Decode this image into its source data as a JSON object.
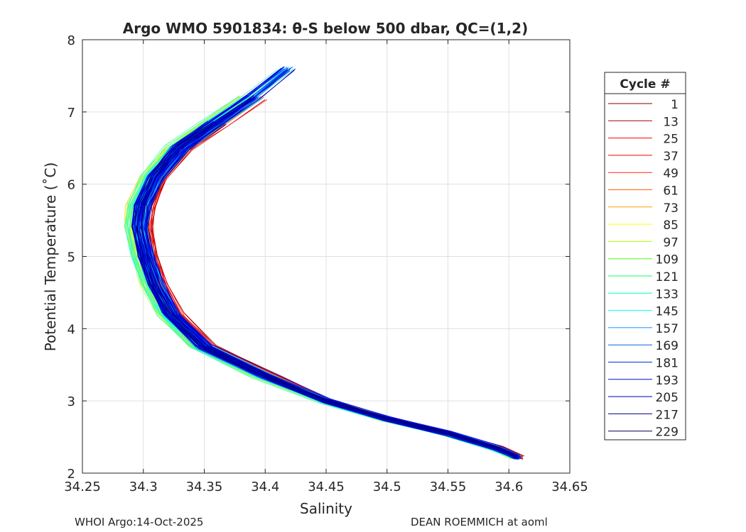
{
  "chart_data": {
    "type": "line",
    "title": "Argo WMO 5901834: θ-S below 500 dbar,  QC=(1,2)",
    "xlabel": "Salinity",
    "ylabel": "Potential Temperature (˚C)",
    "xlim": [
      34.25,
      34.65
    ],
    "ylim": [
      2,
      8
    ],
    "xticks": [
      "34.25",
      "34.3",
      "34.35",
      "34.4",
      "34.45",
      "34.5",
      "34.55",
      "34.6",
      "34.65"
    ],
    "yticks": [
      "2",
      "3",
      "4",
      "5",
      "6",
      "7",
      "8"
    ],
    "grid": true,
    "legend_title": "Cycle #",
    "legend_placement": "outside-right",
    "cycle_range": [
      1,
      229
    ],
    "legend": [
      {
        "label": "1",
        "color": "#800000"
      },
      {
        "label": "13",
        "color": "#a00000"
      },
      {
        "label": "25",
        "color": "#ff0000"
      },
      {
        "label": "37",
        "color": "#f00000"
      },
      {
        "label": "49",
        "color": "#ff2a10"
      },
      {
        "label": "61",
        "color": "#ff6000"
      },
      {
        "label": "73",
        "color": "#ffa000"
      },
      {
        "label": "85",
        "color": "#ffff00"
      },
      {
        "label": "97",
        "color": "#b0ff00"
      },
      {
        "label": "109",
        "color": "#50ff10"
      },
      {
        "label": "121",
        "color": "#10ff60"
      },
      {
        "label": "133",
        "color": "#00ffc0"
      },
      {
        "label": "145",
        "color": "#00ffff"
      },
      {
        "label": "157",
        "color": "#1090ff"
      },
      {
        "label": "169",
        "color": "#1060e0"
      },
      {
        "label": "181",
        "color": "#0030e0"
      },
      {
        "label": "193",
        "color": "#0010c0"
      },
      {
        "label": "205",
        "color": "#0000b0"
      },
      {
        "label": "217",
        "color": "#000080"
      },
      {
        "label": "229",
        "color": "#000050"
      }
    ],
    "mean_profile": {
      "salinity": [
        34.445,
        34.42,
        34.39,
        34.36,
        34.33,
        34.31,
        34.299,
        34.297,
        34.302,
        34.31,
        34.323,
        34.35,
        34.4,
        34.45,
        34.5,
        34.55,
        34.59,
        34.607
      ],
      "theta": [
        7.85,
        7.6,
        7.2,
        6.85,
        6.5,
        6.1,
        5.7,
        5.4,
        5.0,
        4.6,
        4.2,
        3.75,
        3.35,
        3.0,
        2.75,
        2.55,
        2.35,
        2.22
      ]
    }
  },
  "footer": {
    "left": "WHOI Argo:14-Oct-2025",
    "right": "DEAN ROEMMICH at aoml"
  }
}
